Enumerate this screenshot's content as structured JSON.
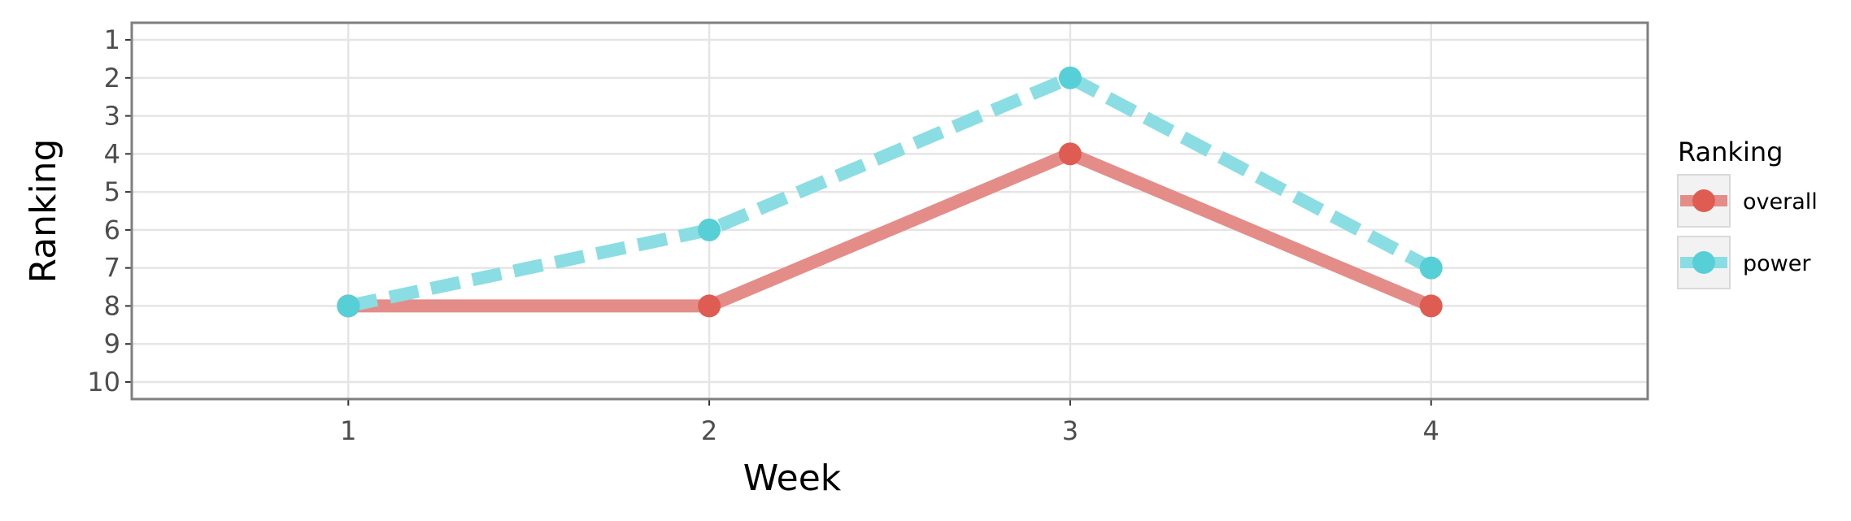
{
  "chart_data": {
    "type": "line",
    "title": "",
    "xlabel": "Week",
    "ylabel": "Ranking",
    "x": [
      1,
      2,
      3,
      4
    ],
    "x_ticks": [
      "1",
      "2",
      "3",
      "4"
    ],
    "xlim": [
      0.4,
      4.6
    ],
    "y_ticks": [
      "1",
      "2",
      "3",
      "4",
      "5",
      "6",
      "7",
      "8",
      "9",
      "10"
    ],
    "ylim": [
      0.55,
      10.45
    ],
    "y_reversed": true,
    "grid": true,
    "legend": {
      "title": "Ranking",
      "position": "right"
    },
    "series": [
      {
        "name": "overall",
        "values": [
          8,
          8,
          4,
          8
        ],
        "color": "#df5c52",
        "line_color": "#e48c87",
        "line_style": "solid"
      },
      {
        "name": "power",
        "values": [
          8,
          6,
          2,
          7
        ],
        "color": "#57cfd6",
        "line_color": "#8addE2",
        "line_style": "dashed"
      }
    ]
  }
}
